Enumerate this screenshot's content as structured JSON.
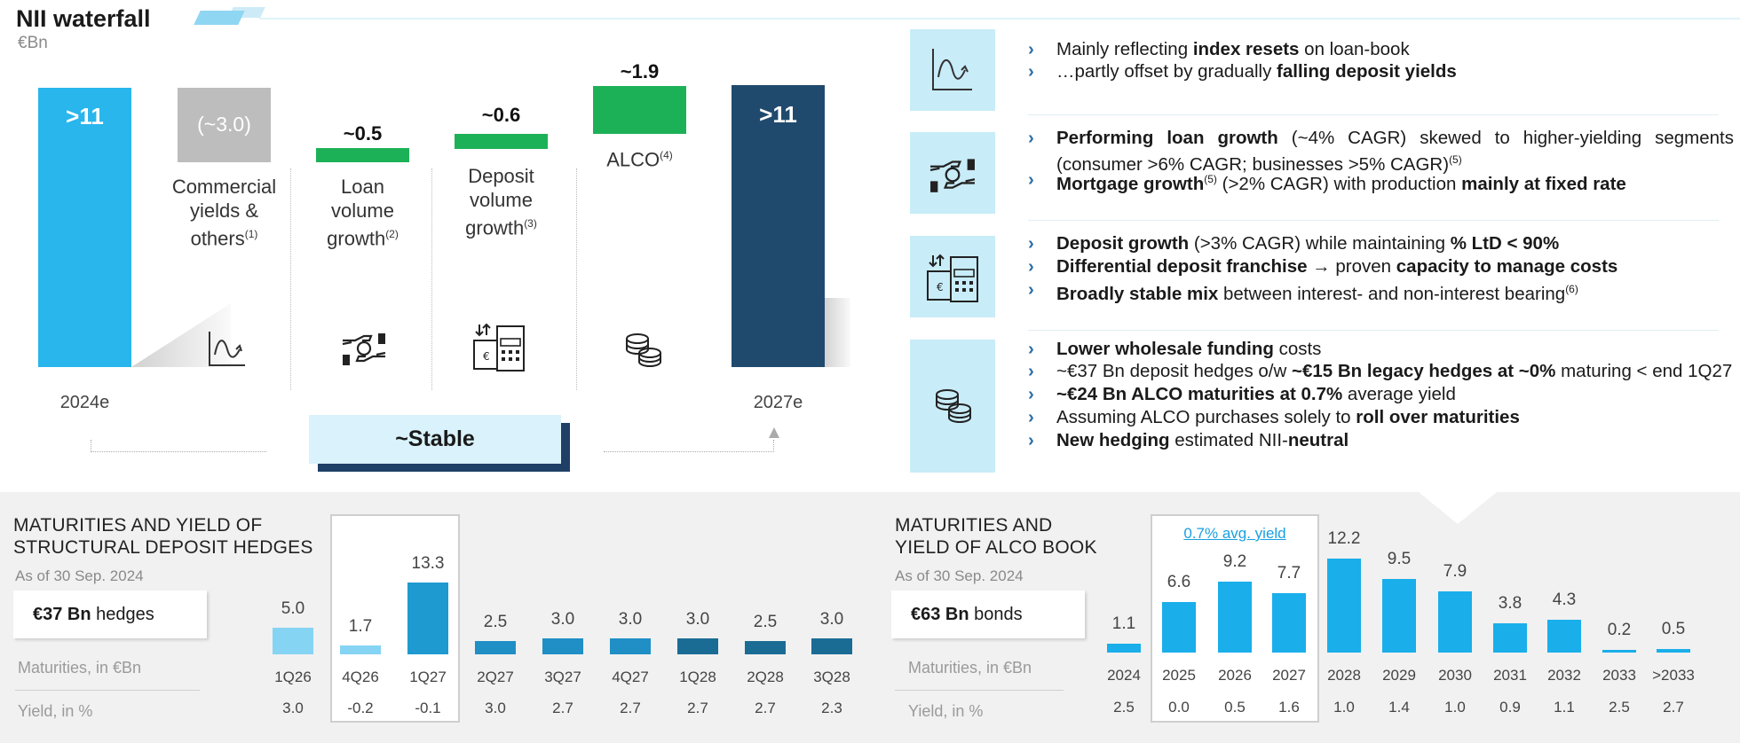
{
  "header": {
    "title": "NII waterfall",
    "unit": "€Bn"
  },
  "waterfall": {
    "start": {
      "value": ">11",
      "label": "2024e"
    },
    "steps": [
      {
        "value": "(~3.0)",
        "label": "Commercial yields & others",
        "note": "(1)",
        "icon": "line-chart-icon"
      },
      {
        "value": "~0.5",
        "label": "Loan volume growth",
        "note": "(2)",
        "icon": "hand-coin-icon"
      },
      {
        "value": "~0.6",
        "label": "Deposit volume growth",
        "note": "(3)",
        "icon": "cash-register-icon"
      },
      {
        "value": "~1.9",
        "label": "ALCO",
        "note": "(4)",
        "icon": "coins-icon"
      }
    ],
    "end": {
      "value": ">11",
      "label": "2027e"
    },
    "stable_label": "~Stable",
    "colors": {
      "start": "#29b6ec",
      "negative": "#bdbdbd",
      "positive": "#1db157",
      "end": "#1f4a6e"
    }
  },
  "drivers": [
    {
      "icon": "line-chart-icon",
      "bullets": [
        [
          "Mainly reflecting ",
          "**index resets**",
          " on loan-book"
        ],
        [
          "…partly offset by gradually ",
          "**falling deposit yields**"
        ]
      ]
    },
    {
      "icon": "hand-coin-icon",
      "bullets": [
        [
          "**Performing loan growth**",
          " (~4% CAGR) skewed to higher-yielding segments (consumer >6% CAGR; businesses >5% CAGR)",
          "^(5)"
        ],
        [
          "**Mortgage growth**",
          "^(5)",
          " (>2% CAGR) with production ",
          "**mainly at fixed rate**"
        ]
      ]
    },
    {
      "icon": "cash-register-icon",
      "bullets": [
        [
          "**Deposit growth**",
          " (>3% CAGR) while maintaining ",
          "**% LtD < 90%**"
        ],
        [
          "**Differential deposit franchise →**",
          " proven ",
          "**capacity to manage costs**"
        ],
        [
          "**Broadly stable mix**",
          " between interest- and non-interest bearing",
          "^(6)"
        ]
      ]
    },
    {
      "icon": "coins-icon",
      "bullets": [
        [
          "**Lower wholesale funding**",
          " costs"
        ],
        [
          "~€37 Bn deposit hedges o/w ",
          "**~€15 Bn legacy hedges at ~0%**",
          " maturing < end 1Q27"
        ],
        [
          "**~€24 Bn ALCO maturities at 0.7%**",
          " average yield"
        ],
        [
          "Assuming ALCO purchases solely to ",
          "**roll over maturities**"
        ],
        [
          "**New hedging**",
          " estimated NII-",
          "**neutral**"
        ]
      ]
    }
  ],
  "hedges": {
    "title_line1": "MATURITIES AND YIELD OF",
    "title_line2": "STRUCTURAL DEPOSIT HEDGES",
    "as_of": "As of 30 Sep. 2024",
    "pill_value": "€37 Bn",
    "pill_text": " hedges",
    "row_maturities": "Maturities, in €Bn",
    "row_yield": "Yield, in %",
    "chart_data": {
      "type": "bar",
      "categories": [
        "1Q26",
        "4Q26",
        "1Q27",
        "2Q27",
        "3Q27",
        "4Q27",
        "1Q28",
        "2Q28",
        "3Q28"
      ],
      "value_labels": [
        "5.0",
        "1.7",
        "13.3",
        "2.5",
        "3.0",
        "3.0",
        "3.0",
        "2.5",
        "3.0"
      ],
      "yield_labels": [
        "3.0",
        "-0.2",
        "-0.1",
        "3.0",
        "2.7",
        "2.7",
        "2.7",
        "2.7",
        "2.3"
      ],
      "values": [
        1.2,
        0.4,
        3.2,
        0.6,
        0.72,
        0.72,
        0.72,
        0.6,
        0.72
      ],
      "colors": [
        "#86d4f3",
        "#86d4f3",
        "#1f9ad0",
        "#1f8fc6",
        "#1f8fc6",
        "#1f8fc6",
        "#1b6c95",
        "#1b6c95",
        "#1b6c95"
      ]
    }
  },
  "alco": {
    "title_line1": "MATURITIES AND",
    "title_line2": "YIELD OF ALCO BOOK",
    "as_of": "As of 30 Sep. 2024",
    "pill_value": "€63 Bn",
    "pill_text": " bonds",
    "row_maturities": "Maturities, in €Bn",
    "row_yield": "Yield, in %",
    "avg_yield": "0.7% avg. yield",
    "chart_data": {
      "type": "bar",
      "categories": [
        "2024",
        "2025",
        "2026",
        "2027",
        "2028",
        "2029",
        "2030",
        "2031",
        "2032",
        "2033",
        ">2033"
      ],
      "values": [
        1.1,
        6.6,
        9.2,
        7.7,
        12.2,
        9.5,
        7.9,
        3.8,
        4.3,
        0.2,
        0.5
      ],
      "yield_labels": [
        "2.5",
        "0.0",
        "0.5",
        "1.6",
        "1.0",
        "1.4",
        "1.0",
        "0.9",
        "1.1",
        "2.5",
        "2.7"
      ],
      "color": "#1aaeea"
    }
  }
}
